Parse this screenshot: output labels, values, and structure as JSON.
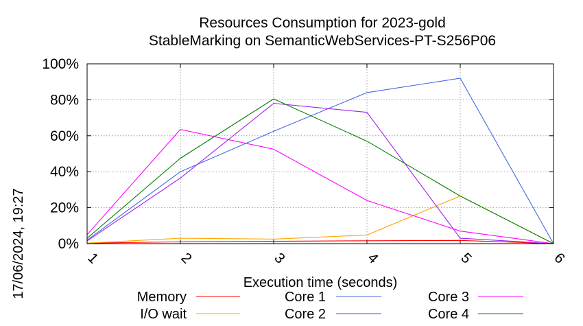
{
  "chart_data": {
    "type": "line",
    "title_lines": [
      "Resources Consumption for 2023-gold",
      "StableMarking on SemanticWebServices-PT-S256P06"
    ],
    "xlabel": "Execution time (seconds)",
    "ylabel": "",
    "side_label": "17/06/2024, 19:27",
    "x": [
      1,
      2,
      3,
      4,
      5,
      6
    ],
    "xlim": [
      1,
      6
    ],
    "ylim": [
      0,
      100
    ],
    "x_ticks": [
      "1",
      "2",
      "3",
      "4",
      "5",
      "6"
    ],
    "y_ticks": [
      "0%",
      "20%",
      "40%",
      "60%",
      "80%",
      "100%"
    ],
    "grid": true,
    "legend_placement": "bottom",
    "series": [
      {
        "name": "Memory",
        "color": "#ff0000",
        "values": [
          0.3,
          1.0,
          1.3,
          1.6,
          1.8,
          0
        ]
      },
      {
        "name": "I/O wait",
        "color": "#ffa500",
        "values": [
          0.3,
          3.0,
          2.5,
          4.8,
          26.5,
          0
        ]
      },
      {
        "name": "Core 1",
        "color": "#4169e1",
        "values": [
          2.0,
          40.0,
          62.5,
          84.0,
          92.0,
          0
        ]
      },
      {
        "name": "Core 2",
        "color": "#a020f0",
        "values": [
          1.5,
          36.5,
          78.0,
          73.0,
          3.0,
          0
        ]
      },
      {
        "name": "Core 3",
        "color": "#ff00ff",
        "values": [
          5.0,
          63.5,
          52.5,
          24.0,
          7.0,
          0
        ]
      },
      {
        "name": "Core 4",
        "color": "#008000",
        "values": [
          3.0,
          47.5,
          80.5,
          57.0,
          26.5,
          0
        ]
      }
    ]
  }
}
